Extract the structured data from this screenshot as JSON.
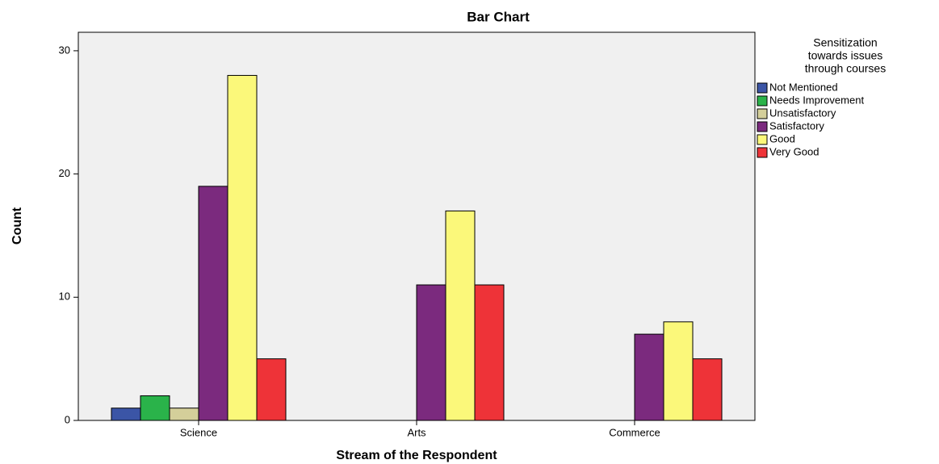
{
  "chart_data": {
    "type": "bar",
    "title": "Bar Chart",
    "x_label": "Stream of the Respondent",
    "y_label": "Count",
    "legend_title": [
      "Sensitization",
      "towards issues",
      "through courses"
    ],
    "categories": [
      "Science",
      "Arts",
      "Commerce"
    ],
    "series": [
      {
        "name": "Not Mentioned",
        "color": "#3b55a6",
        "values": [
          1,
          null,
          null
        ]
      },
      {
        "name": "Needs Improvement",
        "color": "#2ab34a",
        "values": [
          2,
          null,
          null
        ]
      },
      {
        "name": "Unsatisfactory",
        "color": "#d4cf9a",
        "values": [
          1,
          null,
          null
        ]
      },
      {
        "name": "Satisfactory",
        "color": "#7b2a7e",
        "values": [
          19,
          11,
          7
        ]
      },
      {
        "name": "Good",
        "color": "#fbf87a",
        "values": [
          28,
          17,
          8
        ]
      },
      {
        "name": "Very Good",
        "color": "#ee3338",
        "values": [
          5,
          11,
          5
        ]
      }
    ],
    "ylim": [
      0,
      31.5
    ],
    "yticks": [
      0,
      10,
      20,
      30
    ],
    "grid": false,
    "legend": "right"
  }
}
